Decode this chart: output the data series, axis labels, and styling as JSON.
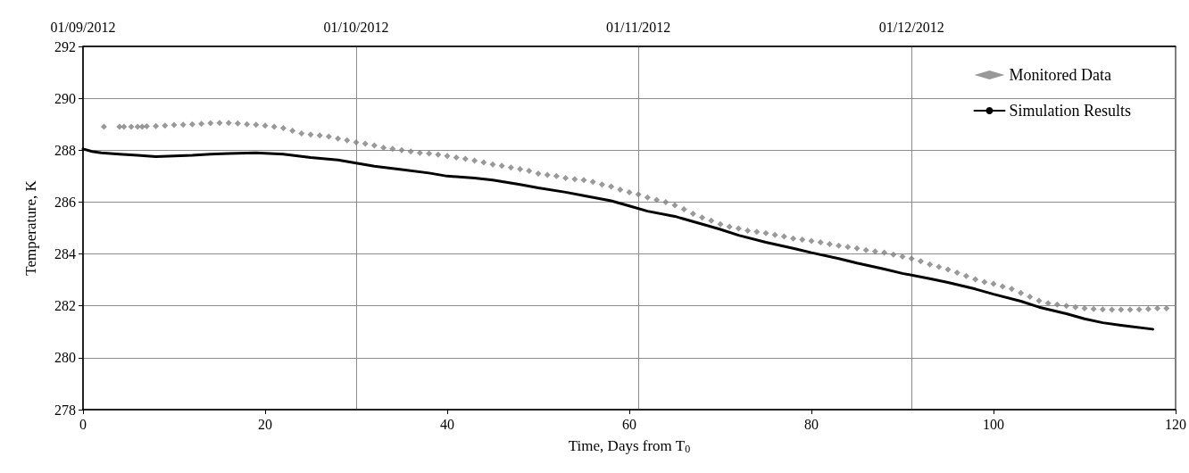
{
  "chart_data": {
    "type": "scatter",
    "xlabel": "Time, Days from T$_{0}$",
    "ylabel": "Temperature, K",
    "xlim": [
      0,
      120
    ],
    "xticks": [
      0,
      20,
      40,
      60,
      80,
      100,
      120
    ],
    "x2lim": [
      "2012-09-01",
      "2012-12-30"
    ],
    "x2ticks": [
      {
        "value": "2012-09-01",
        "label": "01/09/2012"
      },
      {
        "value": "2012-10-01",
        "label": "01/10/2012"
      },
      {
        "value": "2012-11-01",
        "label": "01/11/2012"
      },
      {
        "value": "2012-12-01",
        "label": "01/12/2012"
      }
    ],
    "ylim": [
      278,
      292
    ],
    "yticks": [
      278,
      280,
      282,
      284,
      286,
      288,
      290,
      292
    ],
    "grid": true,
    "legend": "top right",
    "series": [
      {
        "name": "Monitored Data",
        "type": "scatter",
        "marker": "diamond",
        "color": "#808080",
        "x": [
          2.3,
          4,
          4.5,
          5.3,
          6,
          6.5,
          7,
          8,
          9,
          10,
          11,
          12,
          13,
          14,
          15,
          16,
          17,
          18,
          19,
          20,
          21,
          22,
          23,
          24,
          25,
          26,
          27,
          28,
          29,
          30,
          31,
          32,
          33,
          34,
          35,
          36,
          37,
          38,
          39,
          40,
          41,
          42,
          43,
          44,
          45,
          46,
          47,
          48,
          49,
          50,
          51,
          52,
          53,
          54,
          55,
          56,
          57,
          58,
          59,
          60,
          61,
          62,
          63,
          64,
          65,
          66,
          67,
          68,
          69,
          70,
          71,
          72,
          73,
          74,
          75,
          76,
          77,
          78,
          79,
          80,
          81,
          82,
          83,
          84,
          85,
          86,
          87,
          88,
          89,
          90,
          91,
          92,
          93,
          94,
          95,
          96,
          97,
          98,
          99,
          100,
          101,
          102,
          103,
          104,
          105,
          106,
          107,
          108,
          109,
          110,
          111,
          112,
          113,
          114,
          115,
          116,
          117,
          118,
          119
        ],
        "values": [
          288.9,
          288.9,
          288.9,
          288.9,
          288.9,
          288.9,
          288.92,
          288.93,
          288.95,
          288.97,
          288.98,
          289.0,
          289.02,
          289.04,
          289.05,
          289.05,
          289.03,
          289.0,
          288.98,
          288.95,
          288.9,
          288.85,
          288.75,
          288.65,
          288.6,
          288.57,
          288.53,
          288.45,
          288.38,
          288.3,
          288.25,
          288.18,
          288.1,
          288.05,
          288.0,
          287.95,
          287.9,
          287.87,
          287.83,
          287.78,
          287.72,
          287.67,
          287.6,
          287.53,
          287.45,
          287.4,
          287.33,
          287.27,
          287.2,
          287.1,
          287.05,
          287.0,
          286.93,
          286.88,
          286.85,
          286.78,
          286.68,
          286.6,
          286.48,
          286.38,
          286.3,
          286.18,
          286.08,
          286.0,
          285.88,
          285.72,
          285.55,
          285.4,
          285.28,
          285.15,
          285.05,
          284.98,
          284.9,
          284.85,
          284.8,
          284.73,
          284.67,
          284.6,
          284.55,
          284.5,
          284.45,
          284.38,
          284.32,
          284.27,
          284.22,
          284.15,
          284.1,
          284.05,
          283.98,
          283.9,
          283.82,
          283.72,
          283.6,
          283.5,
          283.4,
          283.28,
          283.15,
          283.02,
          282.92,
          282.85,
          282.75,
          282.65,
          282.5,
          282.35,
          282.2,
          282.1,
          282.05,
          282.0,
          281.95,
          281.9,
          281.88,
          281.86,
          281.85,
          281.85,
          281.85,
          281.86,
          281.88,
          281.9,
          281.9
        ]
      },
      {
        "name": "Simulation Results",
        "type": "line",
        "marker": "none",
        "line_style": "solid",
        "color": "#000000",
        "x": [
          0,
          1,
          2,
          4,
          6,
          8,
          10,
          12,
          14,
          16,
          19,
          22,
          25,
          28,
          30,
          32,
          35,
          38,
          40,
          43,
          45,
          48,
          50,
          53,
          55,
          58,
          60,
          62,
          65,
          67,
          70,
          72,
          75,
          78,
          80,
          83,
          85,
          88,
          90,
          93,
          95,
          98,
          100,
          103,
          105,
          108,
          110,
          112,
          114,
          117.5
        ],
        "values": [
          288.05,
          287.95,
          287.9,
          287.85,
          287.8,
          287.75,
          287.78,
          287.8,
          287.85,
          287.87,
          287.9,
          287.85,
          287.72,
          287.62,
          287.5,
          287.38,
          287.25,
          287.12,
          287.0,
          286.93,
          286.85,
          286.68,
          286.55,
          286.38,
          286.25,
          286.05,
          285.85,
          285.65,
          285.45,
          285.25,
          284.95,
          284.72,
          284.45,
          284.22,
          284.05,
          283.82,
          283.65,
          283.42,
          283.25,
          283.05,
          282.9,
          282.65,
          282.45,
          282.18,
          281.95,
          281.7,
          281.5,
          281.35,
          281.25,
          281.1
        ]
      }
    ]
  }
}
